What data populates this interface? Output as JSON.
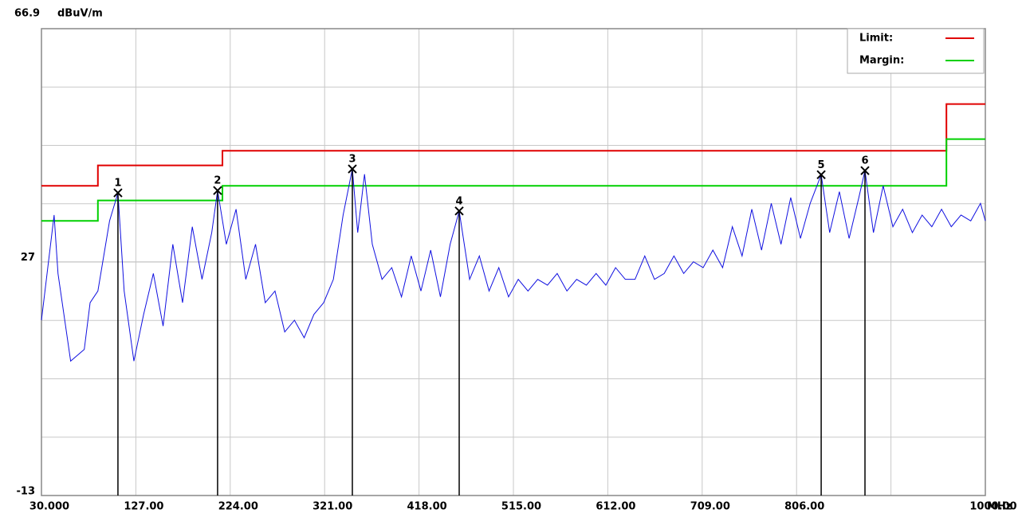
{
  "chart_data": {
    "type": "line",
    "y_top_label": "66.9",
    "y_unit": "dBuV/m",
    "x_unit": "MHz",
    "xlim": [
      30,
      1000
    ],
    "ylim": [
      -13,
      66.9
    ],
    "xticks": [
      {
        "value": 30,
        "label": "30.000"
      },
      {
        "value": 127,
        "label": "127.00"
      },
      {
        "value": 224,
        "label": "224.00"
      },
      {
        "value": 321,
        "label": "321.00"
      },
      {
        "value": 418,
        "label": "418.00"
      },
      {
        "value": 515,
        "label": "515.00"
      },
      {
        "value": 612,
        "label": "612.00"
      },
      {
        "value": 709,
        "label": "709.00"
      },
      {
        "value": 806,
        "label": "806.00"
      },
      {
        "value": 903,
        "label": null
      },
      {
        "value": 1000,
        "label": "1000.00"
      }
    ],
    "yticks": [
      -13,
      27
    ],
    "grid": true,
    "legend_position": "upper right",
    "series": [
      {
        "name": "Limit:",
        "color": "#e00000",
        "x": [
          30,
          88,
          88,
          216,
          216,
          960,
          960,
          1000
        ],
        "values": [
          40,
          40,
          43.5,
          43.5,
          46,
          46,
          54,
          54
        ]
      },
      {
        "name": "Margin:",
        "color": "#00d000",
        "x": [
          30,
          88,
          88,
          216,
          216,
          960,
          960,
          1000
        ],
        "values": [
          34,
          34,
          37.5,
          37.5,
          40,
          40,
          48,
          48
        ]
      },
      {
        "color": "#1010e0",
        "x": [
          30,
          43,
          47,
          60,
          74,
          80,
          88,
          100,
          108.6,
          115,
          125,
          135,
          145,
          155,
          165,
          175,
          185,
          195,
          205,
          211,
          220,
          230,
          240,
          250,
          260,
          270,
          280,
          290,
          300,
          310,
          320,
          330,
          340,
          349.5,
          355,
          362,
          370,
          380,
          390,
          400,
          410,
          420,
          430,
          440,
          450,
          459.3,
          470,
          480,
          490,
          500,
          510,
          520,
          530,
          540,
          550,
          560,
          570,
          580,
          590,
          600,
          610,
          620,
          630,
          640,
          650,
          660,
          670,
          680,
          690,
          700,
          710,
          720,
          730,
          740,
          750,
          760,
          770,
          780,
          790,
          800,
          810,
          820,
          831.3,
          840,
          850,
          860,
          870,
          876.3,
          885,
          895,
          905,
          915,
          925,
          935,
          945,
          955,
          965,
          975,
          985,
          995,
          1000
        ],
        "values": [
          17,
          35,
          25,
          10,
          12,
          20,
          22,
          34,
          38.8,
          22,
          10,
          18,
          25,
          16,
          30,
          20,
          33,
          24,
          32,
          39.2,
          30,
          36,
          24,
          30,
          20,
          22,
          15,
          17,
          14,
          18,
          20,
          24,
          35,
          42.9,
          32,
          42,
          30,
          24,
          26,
          21,
          28,
          22,
          29,
          21,
          30,
          35.7,
          24,
          28,
          22,
          26,
          21,
          24,
          22,
          24,
          23,
          25,
          22,
          24,
          23,
          25,
          23,
          26,
          24,
          24,
          28,
          24,
          25,
          28,
          25,
          27,
          26,
          29,
          26,
          33,
          28,
          36,
          29,
          37,
          30,
          38,
          31,
          37,
          41.9,
          32,
          39,
          31,
          38,
          42.6,
          32,
          40,
          33,
          36,
          32,
          35,
          33,
          36,
          33,
          35,
          34,
          37,
          34
        ]
      }
    ],
    "markers": {
      "labels": [
        "1",
        "2",
        "3",
        "4",
        "5",
        "6"
      ],
      "x": [
        108.6,
        211,
        349.5,
        459.3,
        831.3,
        876.3
      ],
      "values": [
        38.8,
        39.2,
        42.9,
        35.7,
        41.9,
        42.6
      ]
    }
  }
}
